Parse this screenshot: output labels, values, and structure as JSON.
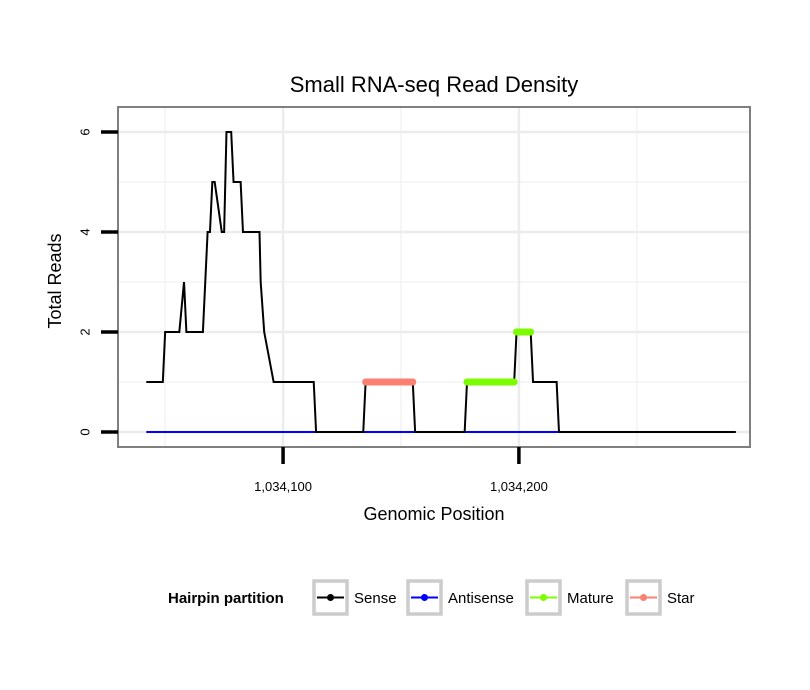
{
  "chart_data": {
    "type": "line",
    "title": "Small RNA-seq Read Density",
    "xlabel": "Genomic Position",
    "ylabel": "Total Reads",
    "xlim": [
      1034030,
      1034298
    ],
    "ylim": [
      -0.3,
      6.5
    ],
    "x_ticks": [
      {
        "value": 1034100,
        "label": "1,034,100"
      },
      {
        "value": 1034200,
        "label": "1,034,200"
      }
    ],
    "y_ticks": [
      {
        "value": 0,
        "label": "0"
      },
      {
        "value": 2,
        "label": "2"
      },
      {
        "value": 4,
        "label": "4"
      },
      {
        "value": 6,
        "label": "6"
      }
    ],
    "grid": true,
    "legend": {
      "title": "Hairpin partition",
      "position": "bottom",
      "entries": [
        {
          "name": "Sense",
          "color": "#000000"
        },
        {
          "name": "Antisense",
          "color": "#0000ff"
        },
        {
          "name": "Mature",
          "color": "#7cfc00"
        },
        {
          "name": "Star",
          "color": "#fa8072"
        }
      ]
    },
    "series": [
      {
        "name": "Sense",
        "color": "#000000",
        "x": [
          1034042,
          1034049,
          1034050,
          1034056,
          1034058,
          1034059,
          1034060,
          1034066,
          1034068,
          1034069,
          1034070,
          1034071,
          1034074,
          1034075,
          1034076,
          1034078,
          1034079,
          1034082,
          1034083,
          1034088,
          1034090,
          1034090.5,
          1034092,
          1034096,
          1034113,
          1034114,
          1034134,
          1034135,
          1034155,
          1034156,
          1034177,
          1034178,
          1034198,
          1034199,
          1034205,
          1034206,
          1034216,
          1034217,
          1034292
        ],
        "y": [
          1,
          1,
          2,
          2,
          3,
          2,
          2,
          2,
          4,
          4,
          5,
          5,
          4,
          4,
          6,
          6,
          5,
          5,
          4,
          4,
          4,
          3,
          2,
          1,
          1,
          0,
          0,
          1,
          1,
          0,
          0,
          1,
          1,
          2,
          2,
          1,
          1,
          0,
          0
        ]
      },
      {
        "name": "Antisense",
        "color": "#0000ff",
        "x": [
          1034042,
          1034217
        ],
        "y": [
          0,
          0
        ]
      },
      {
        "name": "Mature",
        "color": "#7cfc00",
        "segments": [
          {
            "x": [
              1034178,
              1034198
            ],
            "y": 1
          },
          {
            "x": [
              1034199,
              1034205
            ],
            "y": 2
          }
        ]
      },
      {
        "name": "Star",
        "color": "#fa8072",
        "segments": [
          {
            "x": [
              1034135,
              1034155
            ],
            "y": 1
          }
        ]
      }
    ]
  }
}
